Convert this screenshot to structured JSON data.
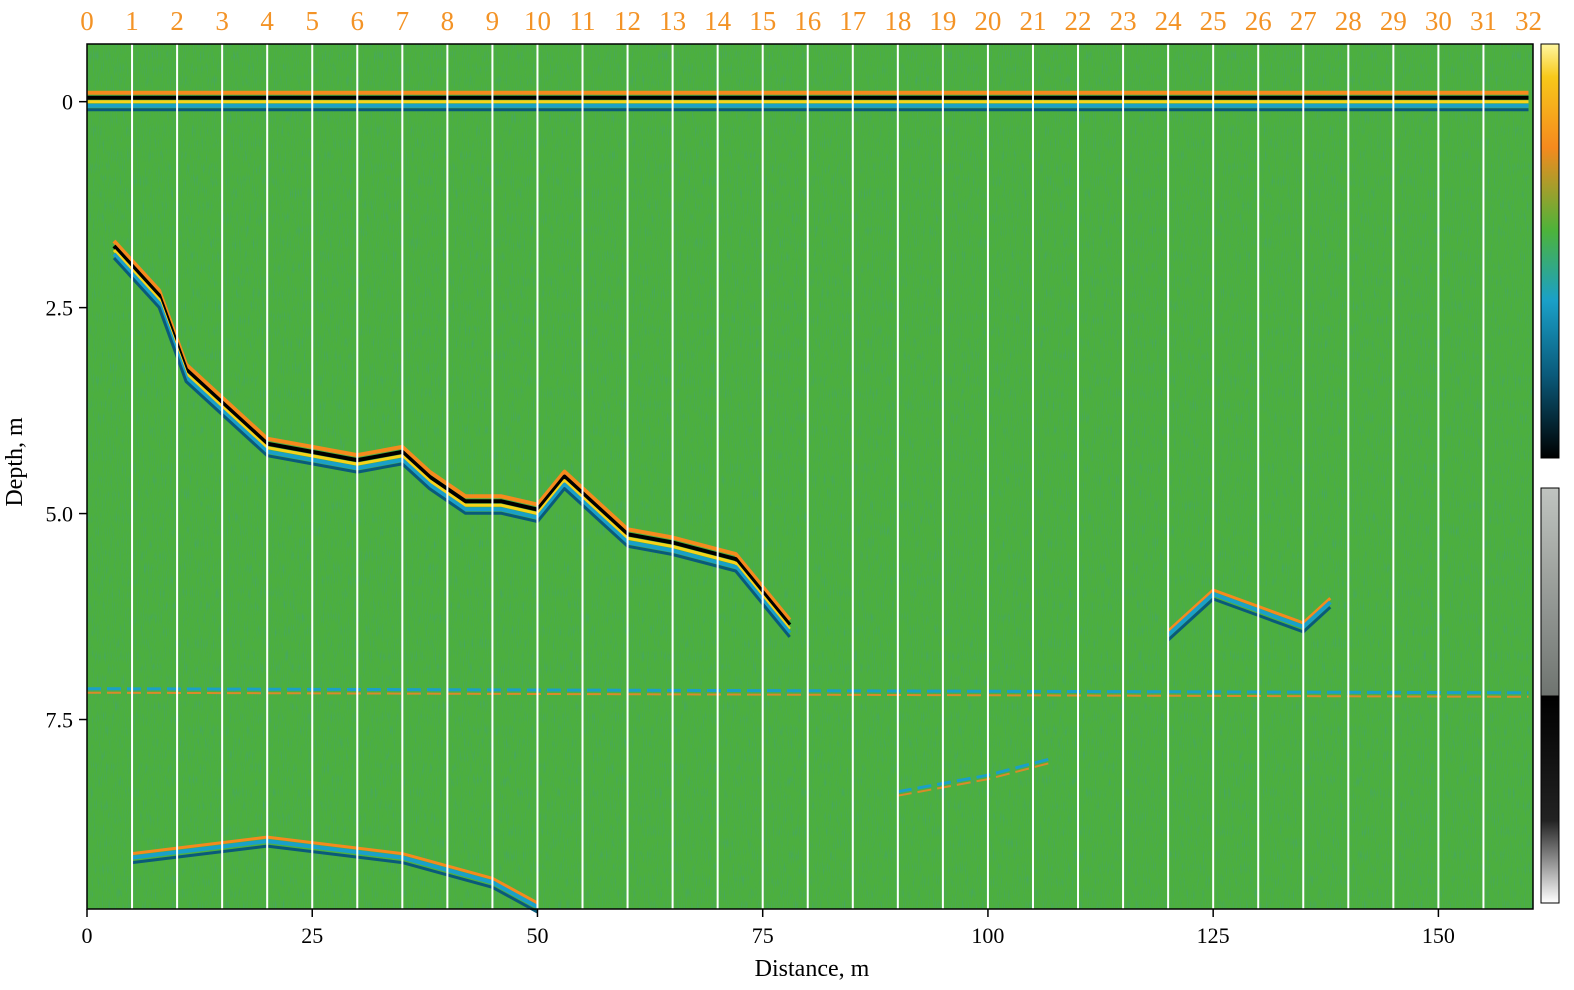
{
  "chart_data": {
    "type": "heatmap",
    "title": "",
    "xlabel": "Distance, m",
    "ylabel": "Depth, m",
    "xlim": [
      0,
      160.5
    ],
    "ylim": [
      -0.7,
      9.8
    ],
    "x_ticks": [
      {
        "value": 0,
        "label": "0"
      },
      {
        "value": 25,
        "label": "25"
      },
      {
        "value": 50,
        "label": "50"
      },
      {
        "value": 75,
        "label": "75"
      },
      {
        "value": 100,
        "label": "100"
      },
      {
        "value": 125,
        "label": "125"
      },
      {
        "value": 150,
        "label": "150"
      }
    ],
    "y_ticks": [
      {
        "value": 0,
        "label": "0"
      },
      {
        "value": 2.5,
        "label": "2.5"
      },
      {
        "value": 5.0,
        "label": "5.0"
      },
      {
        "value": 7.5,
        "label": "7.5"
      }
    ],
    "markers": {
      "spacing_m": 5,
      "labels": [
        "0",
        "1",
        "2",
        "3",
        "4",
        "5",
        "6",
        "7",
        "8",
        "9",
        "10",
        "11",
        "12",
        "13",
        "14",
        "15",
        "16",
        "17",
        "18",
        "19",
        "20",
        "21",
        "22",
        "23",
        "24",
        "25",
        "26",
        "27",
        "28",
        "29",
        "30",
        "31",
        "32"
      ]
    },
    "reflectors": [
      {
        "name": "main-reflector-upper",
        "strength": "strong",
        "points": [
          [
            3,
            1.8
          ],
          [
            8,
            2.4
          ],
          [
            11,
            3.3
          ],
          [
            15,
            3.7
          ],
          [
            20,
            4.2
          ],
          [
            25,
            4.3
          ],
          [
            30,
            4.4
          ],
          [
            35,
            4.3
          ],
          [
            38,
            4.6
          ],
          [
            42,
            4.9
          ],
          [
            46,
            4.9
          ],
          [
            50,
            5.0
          ],
          [
            53,
            4.6
          ],
          [
            57,
            5.0
          ],
          [
            60,
            5.3
          ],
          [
            65,
            5.4
          ],
          [
            72,
            5.6
          ],
          [
            78,
            6.4
          ]
        ]
      },
      {
        "name": "near-surface-layer",
        "strength": "strong",
        "points": [
          [
            0,
            0
          ],
          [
            160,
            0
          ]
        ]
      },
      {
        "name": "deep-reflector-left",
        "strength": "medium",
        "points": [
          [
            5,
            9.2
          ],
          [
            20,
            9.0
          ],
          [
            35,
            9.2
          ],
          [
            45,
            9.5
          ],
          [
            50,
            9.8
          ]
        ]
      },
      {
        "name": "deep-reflector-mid",
        "strength": "weak",
        "points": [
          [
            90,
            8.4
          ],
          [
            100,
            8.2
          ],
          [
            107,
            8.0
          ]
        ]
      },
      {
        "name": "right-reflector",
        "strength": "medium",
        "points": [
          [
            120,
            6.5
          ],
          [
            125,
            6.0
          ],
          [
            130,
            6.2
          ],
          [
            135,
            6.4
          ],
          [
            138,
            6.1
          ]
        ]
      },
      {
        "name": "horizontal-event",
        "strength": "weak",
        "points": [
          [
            0,
            7.15
          ],
          [
            160,
            7.2
          ]
        ]
      }
    ],
    "colormap": {
      "stops": [
        "#ffffff",
        "#f7d21a",
        "#f58a1e",
        "#4db33a",
        "#1aa0c8",
        "#0a5a7a",
        "#000000"
      ],
      "background": "#4caf3f"
    },
    "colors": {
      "marker_label": "#f39326",
      "marker_line": "#ffffff",
      "axis": "#000000"
    }
  }
}
